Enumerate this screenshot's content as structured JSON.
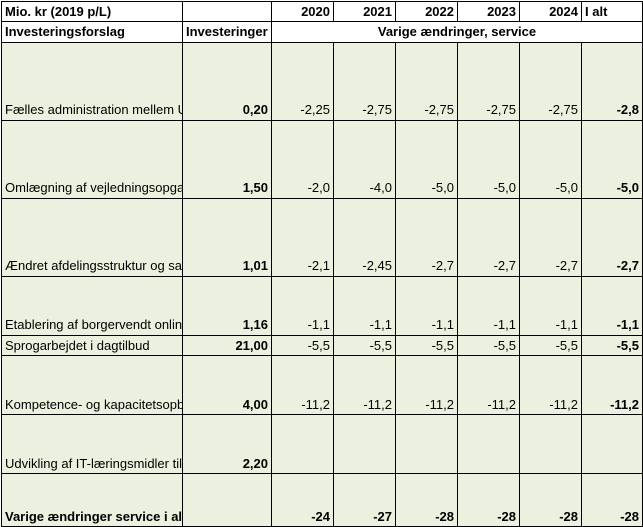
{
  "header": {
    "unit_label": "Mio. kr (2019 p/L)",
    "years": [
      "2020",
      "2021",
      "2022",
      "2023",
      "2024"
    ],
    "total_label": "I alt",
    "col_proposal": "Investeringsforslag",
    "col_investment": "Investeringer",
    "col_changes": "Varige ændringer, service"
  },
  "rows": [
    {
      "label": "Fælles administration mellem Ungdomsskolen og Ungdommens Uddannelsesvejledning",
      "investment": "0,20",
      "values": [
        "-2,25",
        "-2,75",
        "-2,75",
        "-2,75",
        "-2,75"
      ],
      "total": "-2,8"
    },
    {
      "label": "Omlægning af vejledningsopgaven i Ungdommens Uddannelsesvejledning",
      "investment": "1,50",
      "values": [
        "-2,0",
        "-4,0",
        "-5,0",
        "-5,0",
        "-5,0"
      ],
      "total": "-5,0"
    },
    {
      "label": "Ændret afdelingsstruktur og samlokalisering af Ungdomsskolens heltidsundervisning",
      "investment": "1,01",
      "values": [
        "-2,1",
        "-2,45",
        "-2,7",
        "-2,7",
        "-2,7"
      ],
      "total": "-2,7"
    },
    {
      "label": "Etablering af borgervendt onlineløsning i Børnetandplejen",
      "investment": "1,16",
      "values": [
        "-1,1",
        "-1,1",
        "-1,1",
        "-1,1",
        "-1,1"
      ],
      "total": "-1,1"
    },
    {
      "label": "Sprogarbejdet i dagtilbud",
      "investment": "21,00",
      "values": [
        "-5,5",
        "-5,5",
        "-5,5",
        "-5,5",
        "-5,5"
      ],
      "total": "-5,5"
    },
    {
      "label": "Kompetence- og kapacitetsopbygning af støttepædagogkorps",
      "investment": "4,00",
      "values": [
        "-11,2",
        "-11,2",
        "-11,2",
        "-11,2",
        "-11,2"
      ],
      "total": "-11,2"
    },
    {
      "label": "Udvikling af IT-læringsmidler til matematik baseret på adaptiv læring",
      "investment": "2,20",
      "values": [
        "",
        "",
        "",
        "",
        ""
      ],
      "total": ""
    }
  ],
  "total_row": {
    "label": "Varige ændringer service i alt",
    "investment": "",
    "values": [
      "-24",
      "-27",
      "-28",
      "-28",
      "-28"
    ],
    "total": "-28"
  }
}
